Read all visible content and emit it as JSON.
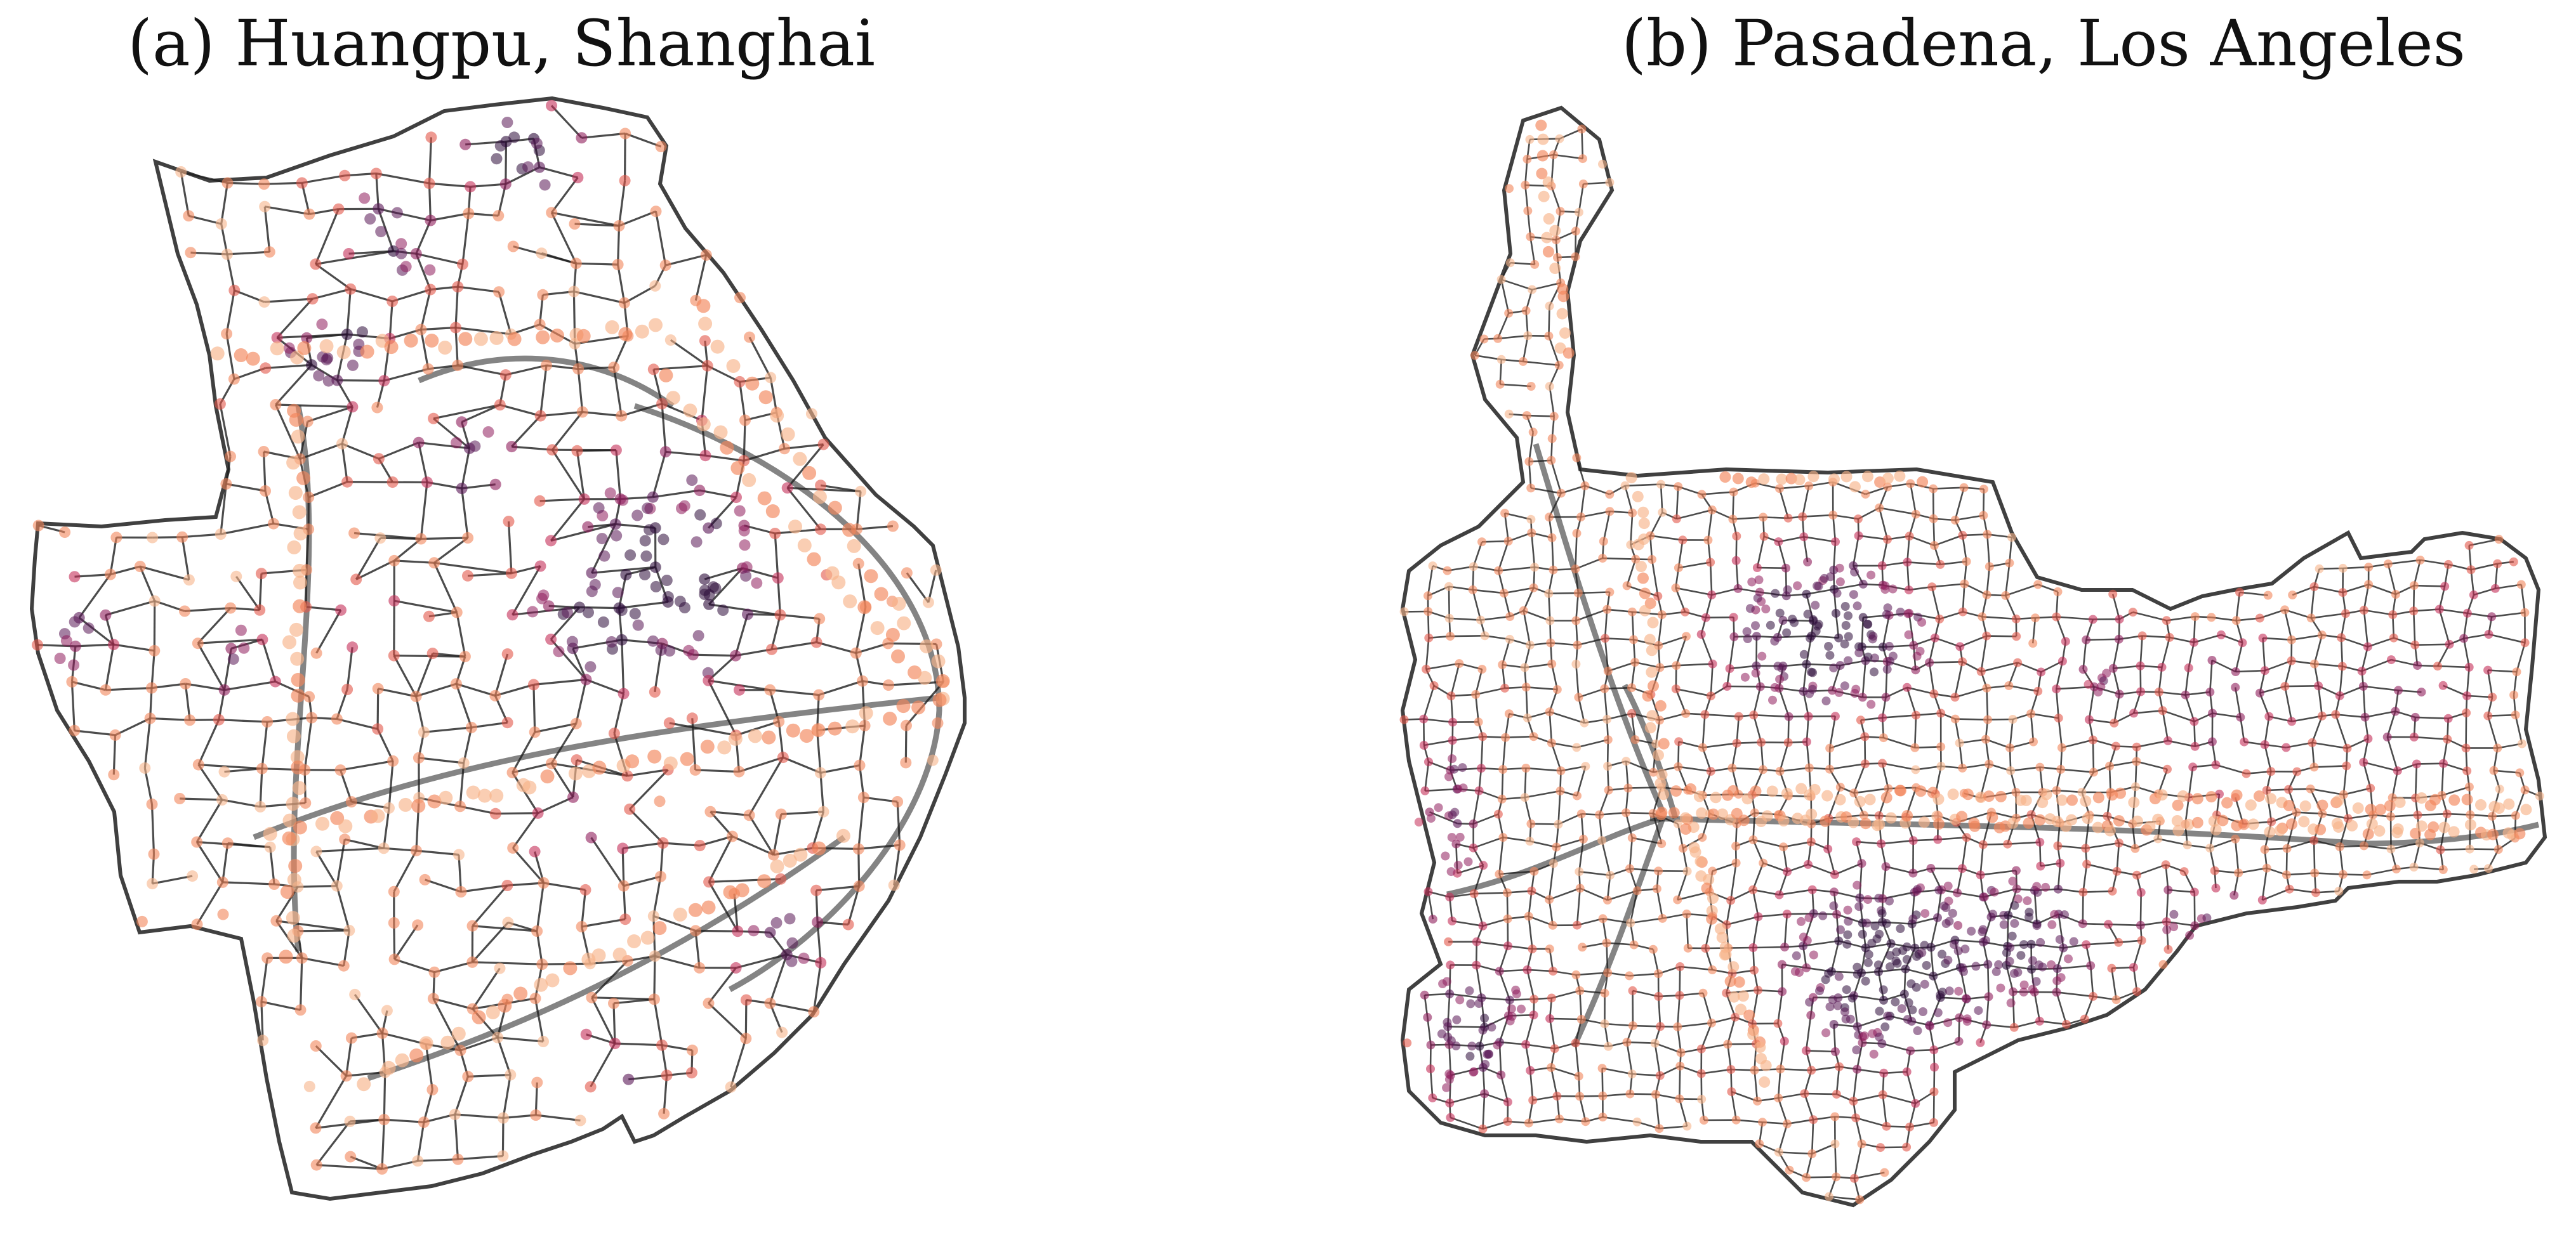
{
  "figure": {
    "panels": [
      {
        "id": "a",
        "title": "(a) Huangpu, Shanghai"
      },
      {
        "id": "b",
        "title": "(b) Pasadena, Los Angeles"
      }
    ]
  },
  "legend_colors": {
    "road": "#1f1f1f",
    "node_scale": [
      "#f7b48a",
      "#f2855a",
      "#e2574a",
      "#c42e58",
      "#8f1e5c",
      "#5a1856",
      "#2d0c3a"
    ]
  }
}
